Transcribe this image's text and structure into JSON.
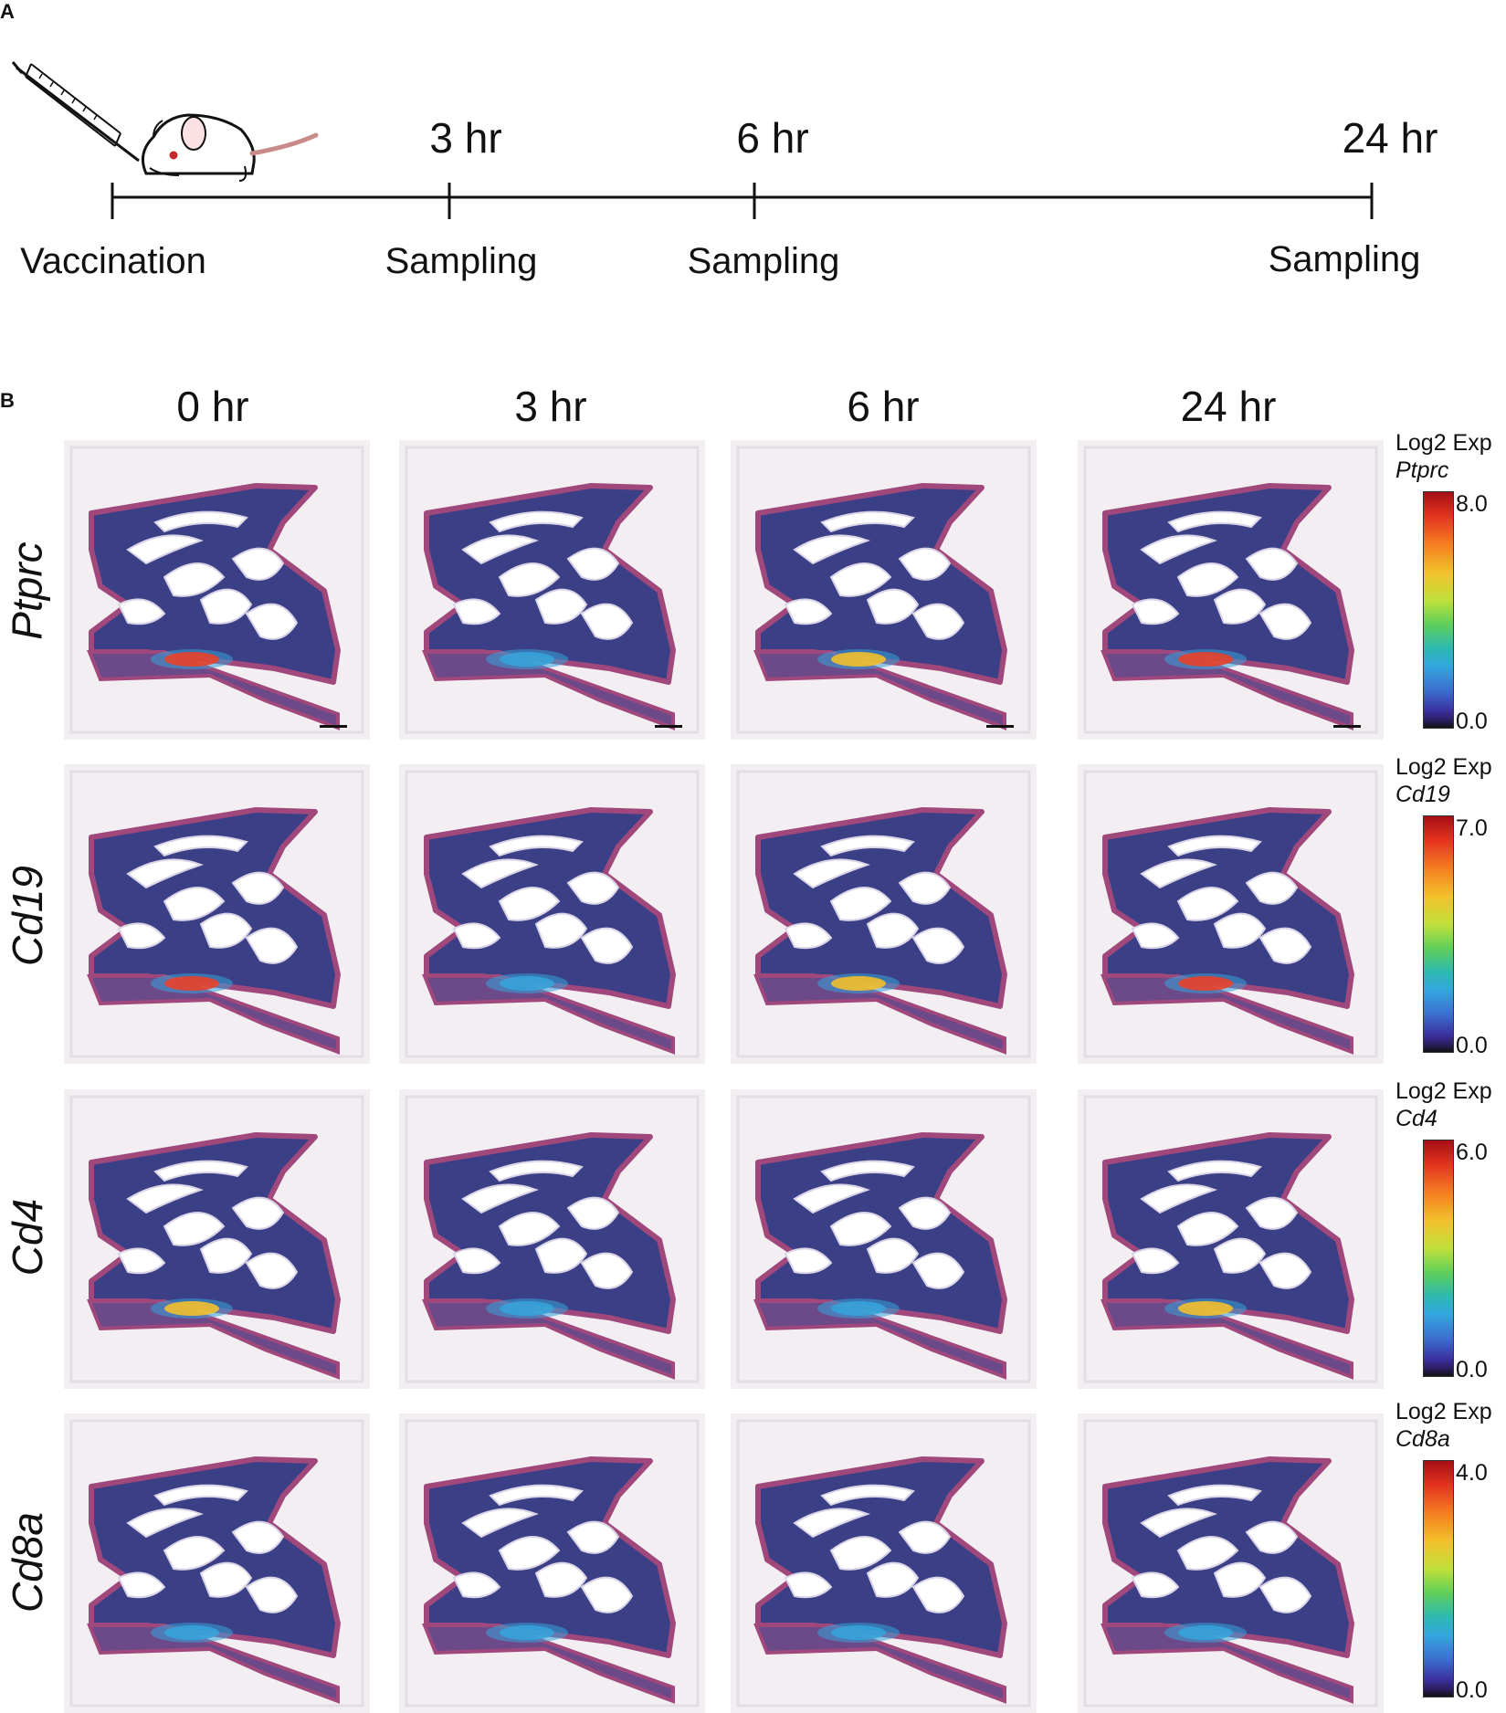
{
  "panel_a": {
    "letter": "A",
    "timepoints": [
      {
        "time": "",
        "event": "Vaccination"
      },
      {
        "time": "3 hr",
        "event": "Sampling"
      },
      {
        "time": "6 hr",
        "event": "Sampling"
      },
      {
        "time": "24 hr",
        "event": "Sampling"
      }
    ],
    "icons": [
      "syringe-icon",
      "mouse-icon"
    ]
  },
  "panel_b": {
    "letter": "B",
    "columns": [
      "0 hr",
      "3 hr",
      "6 hr",
      "24 hr"
    ],
    "rows": [
      {
        "gene": "Ptprc",
        "legend_title": "Log2 Exp",
        "legend_max": "8.0",
        "legend_min": "0.0"
      },
      {
        "gene": "Cd19",
        "legend_title": "Log2 Exp",
        "legend_max": "7.0",
        "legend_min": "0.0"
      },
      {
        "gene": "Cd4",
        "legend_title": "Log2 Exp",
        "legend_max": "6.0",
        "legend_min": "0.0"
      },
      {
        "gene": "Cd8a",
        "legend_title": "Log2 Exp",
        "legend_max": "4.0",
        "legend_min": "0.0"
      }
    ],
    "colors": {
      "tissue": "#3b3f86",
      "tissue_edge": "#a0487c",
      "background": "#f2eef2",
      "hot": "#e8412a",
      "warm": "#f2c02c",
      "cool": "#36a3d9"
    }
  }
}
